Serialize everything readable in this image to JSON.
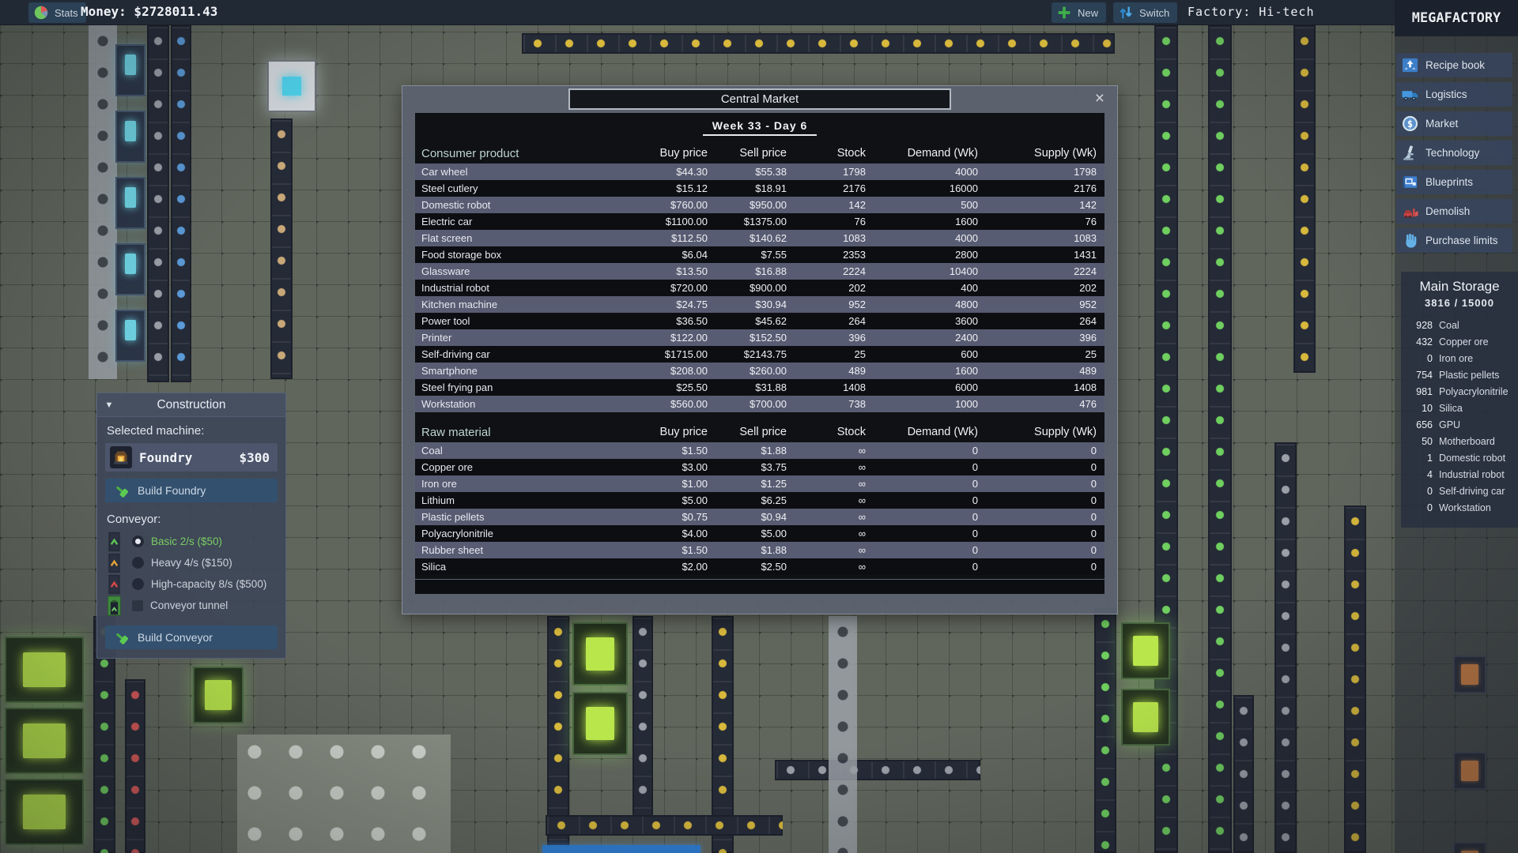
{
  "top_bar": {
    "stats_label": "Stats",
    "money_text": "Money: $2728011.43",
    "new_label": "New",
    "switch_label": "Switch",
    "factory_text": "Factory: Hi-tech"
  },
  "sidebar": {
    "logo": "MEGAFACTORY",
    "buttons": [
      {
        "icon": "recipe-book-icon",
        "label": "Recipe book"
      },
      {
        "icon": "logistics-truck-icon",
        "label": "Logistics"
      },
      {
        "icon": "market-coin-icon",
        "label": "Market"
      },
      {
        "icon": "technology-microscope-icon",
        "label": "Technology"
      },
      {
        "icon": "blueprints-icon",
        "label": "Blueprints"
      },
      {
        "icon": "demolish-bulldozer-icon",
        "label": "Demolish"
      },
      {
        "icon": "purchase-limits-hand-icon",
        "label": "Purchase limits"
      }
    ],
    "storage": {
      "title": "Main Storage",
      "usage": "3816 / 15000",
      "items": [
        {
          "count": "928",
          "name": "Coal"
        },
        {
          "count": "432",
          "name": "Copper ore"
        },
        {
          "count": "0",
          "name": "Iron ore"
        },
        {
          "count": "754",
          "name": "Plastic pellets"
        },
        {
          "count": "981",
          "name": "Polyacrylonitrile"
        },
        {
          "count": "10",
          "name": "Silica"
        },
        {
          "count": "656",
          "name": "GPU"
        },
        {
          "count": "50",
          "name": "Motherboard"
        },
        {
          "count": "1",
          "name": "Domestic robot"
        },
        {
          "count": "4",
          "name": "Industrial robot"
        },
        {
          "count": "0",
          "name": "Self-driving car"
        },
        {
          "count": "0",
          "name": "Workstation"
        }
      ]
    }
  },
  "market_dialog": {
    "title": "Central Market",
    "close_label": "×",
    "date": "Week 33 - Day 6",
    "consumer": {
      "headers": [
        "Consumer product",
        "Buy price",
        "Sell price",
        "Stock",
        "Demand (Wk)",
        "Supply (Wk)"
      ],
      "rows": [
        [
          "Car wheel",
          "$44.30",
          "$55.38",
          "1798",
          "4000",
          "1798"
        ],
        [
          "Steel cutlery",
          "$15.12",
          "$18.91",
          "2176",
          "16000",
          "2176"
        ],
        [
          "Domestic robot",
          "$760.00",
          "$950.00",
          "142",
          "500",
          "142"
        ],
        [
          "Electric car",
          "$1100.00",
          "$1375.00",
          "76",
          "1600",
          "76"
        ],
        [
          "Flat screen",
          "$112.50",
          "$140.62",
          "1083",
          "4000",
          "1083"
        ],
        [
          "Food storage box",
          "$6.04",
          "$7.55",
          "2353",
          "2800",
          "1431"
        ],
        [
          "Glassware",
          "$13.50",
          "$16.88",
          "2224",
          "10400",
          "2224"
        ],
        [
          "Industrial robot",
          "$720.00",
          "$900.00",
          "202",
          "400",
          "202"
        ],
        [
          "Kitchen machine",
          "$24.75",
          "$30.94",
          "952",
          "4800",
          "952"
        ],
        [
          "Power tool",
          "$36.50",
          "$45.62",
          "264",
          "3600",
          "264"
        ],
        [
          "Printer",
          "$122.00",
          "$152.50",
          "396",
          "2400",
          "396"
        ],
        [
          "Self-driving car",
          "$1715.00",
          "$2143.75",
          "25",
          "600",
          "25"
        ],
        [
          "Smartphone",
          "$208.00",
          "$260.00",
          "489",
          "1600",
          "489"
        ],
        [
          "Steel frying pan",
          "$25.50",
          "$31.88",
          "1408",
          "6000",
          "1408"
        ],
        [
          "Workstation",
          "$560.00",
          "$700.00",
          "738",
          "1000",
          "476"
        ]
      ]
    },
    "raw": {
      "headers": [
        "Raw material",
        "Buy price",
        "Sell price",
        "Stock",
        "Demand (Wk)",
        "Supply (Wk)"
      ],
      "rows": [
        [
          "Coal",
          "$1.50",
          "$1.88",
          "∞",
          "0",
          "0"
        ],
        [
          "Copper ore",
          "$3.00",
          "$3.75",
          "∞",
          "0",
          "0"
        ],
        [
          "Iron ore",
          "$1.00",
          "$1.25",
          "∞",
          "0",
          "0"
        ],
        [
          "Lithium",
          "$5.00",
          "$6.25",
          "∞",
          "0",
          "0"
        ],
        [
          "Plastic pellets",
          "$0.75",
          "$0.94",
          "∞",
          "0",
          "0"
        ],
        [
          "Polyacrylonitrile",
          "$4.00",
          "$5.00",
          "∞",
          "0",
          "0"
        ],
        [
          "Rubber sheet",
          "$1.50",
          "$1.88",
          "∞",
          "0",
          "0"
        ],
        [
          "Silica",
          "$2.00",
          "$2.50",
          "∞",
          "0",
          "0"
        ]
      ]
    }
  },
  "construction": {
    "collapse_icon": "▼",
    "title": "Construction",
    "selected_machine_label": "Selected machine:",
    "machine": {
      "name": "Foundry",
      "price": "$300"
    },
    "build_machine_label": "Build Foundry",
    "conveyor_label": "Conveyor:",
    "conveyor_options": [
      {
        "label": "Basic 2/s ($50)",
        "selected": true,
        "control": "radio",
        "color": "#5ec455"
      },
      {
        "label": "Heavy 4/s ($150)",
        "selected": false,
        "control": "radio",
        "color": "#e0a23a"
      },
      {
        "label": "High-capacity 8/s ($500)",
        "selected": false,
        "control": "radio",
        "color": "#d84848"
      },
      {
        "label": "Conveyor tunnel",
        "selected": false,
        "control": "checkbox",
        "color": "#5ec455"
      }
    ],
    "build_conveyor_label": "Build Conveyor"
  },
  "colors": {
    "new_button_plus": "#3fae4a",
    "switch_arrows": "#3d9be0",
    "selected_option_green": "#74c95e",
    "demolish_red": "#c94444",
    "row_light": "#585c72",
    "row_dark": "#0d0e12"
  }
}
